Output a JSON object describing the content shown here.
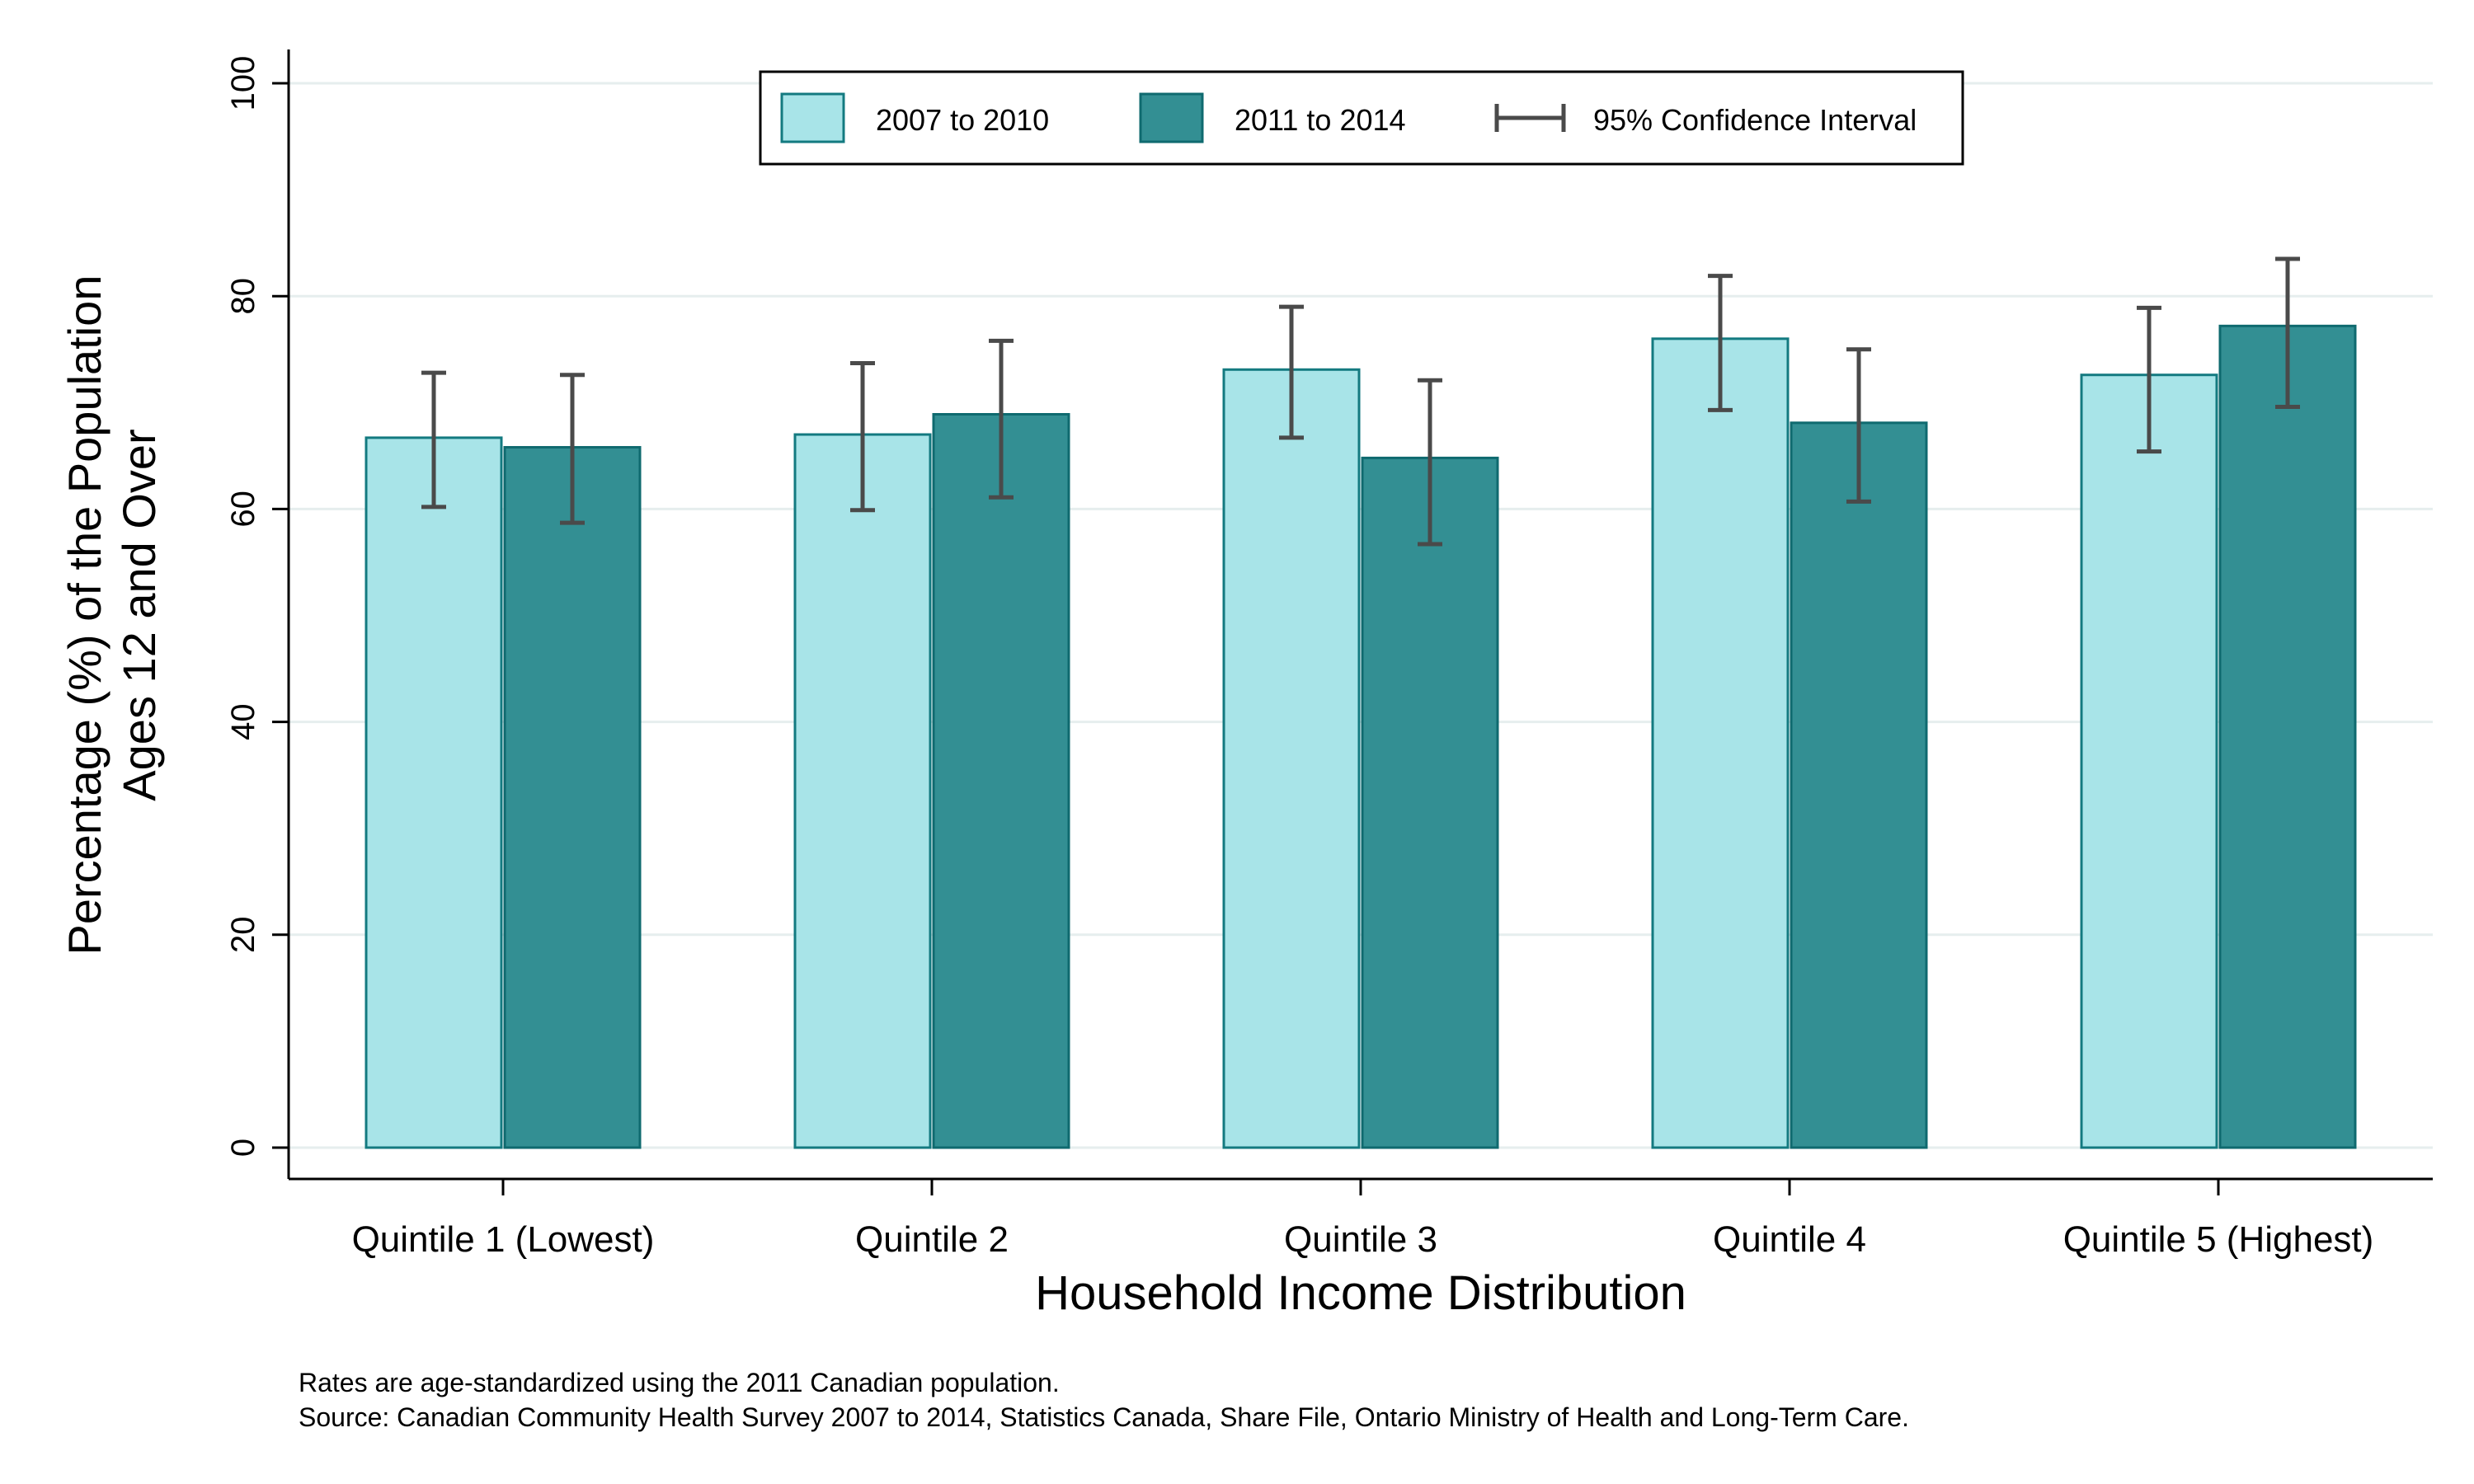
{
  "chart_data": {
    "type": "bar",
    "title": "",
    "xlabel": "Household Income Distribution",
    "ylabel_line1": "Percentage (%) of the Population",
    "ylabel_line2": "Ages 12 and Over",
    "ylim": [
      0,
      100
    ],
    "yticks": [
      "0",
      "20",
      "40",
      "60",
      "80",
      "100"
    ],
    "grid": true,
    "legend_position": "top-center",
    "categories": [
      "Quintile 1 (Lowest)",
      "Quintile 2",
      "Quintile 3",
      "Quintile 4",
      "Quintile 5 (Highest)"
    ],
    "series": [
      {
        "name": "2007 to 2010",
        "color": "#a8e4e8",
        "edge_color": "#137a80",
        "values": [
          66.7,
          67.0,
          73.1,
          76.0,
          72.6
        ],
        "ci_low": [
          60.2,
          59.9,
          66.7,
          69.3,
          65.4
        ],
        "ci_high": [
          72.8,
          73.7,
          79.0,
          81.9,
          78.9
        ]
      },
      {
        "name": "2011 to 2014",
        "color": "#338f93",
        "edge_color": "#0f6a6f",
        "values": [
          65.8,
          68.9,
          64.8,
          68.1,
          77.2
        ],
        "ci_low": [
          58.7,
          61.1,
          56.7,
          60.7,
          69.6
        ],
        "ci_high": [
          72.6,
          75.8,
          72.1,
          75.0,
          83.5
        ]
      }
    ],
    "ci_legend_label": "95% Confidence Interval",
    "ci_color": "#4a4a4a",
    "notes": [
      "Rates are age-standardized using the 2011 Canadian population.",
      "Source: Canadian Community Health Survey 2007 to 2014, Statistics Canada, Share File, Ontario Ministry of Health and Long-Term Care."
    ]
  }
}
